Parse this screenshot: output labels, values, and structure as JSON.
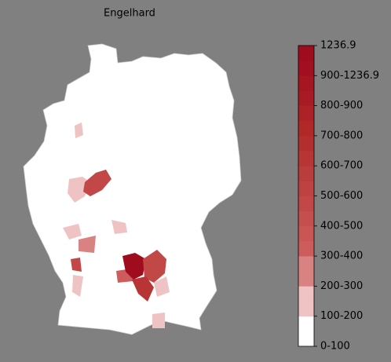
{
  "title": "Engelhard",
  "colorbar": {
    "labels": [
      "0-100",
      "100-200",
      "200-300",
      "300-400",
      "400-500",
      "500-600",
      "600-700",
      "700-800",
      "800-900",
      "900-1236.9",
      "1236.9"
    ],
    "colors": [
      "#ffffff",
      "#ffffff",
      "#efc3c3",
      "#efc3c3",
      "#d98282",
      "#d98282",
      "#cd5c5c",
      "#c95555",
      "#c54e4e",
      "#c24848",
      "#be4242",
      "#ba3c3c",
      "#b73535",
      "#b32e2e",
      "#b02828",
      "#ac2226",
      "#a81b24",
      "#a51522",
      "#a10f20",
      "#9e0c1e"
    ]
  }
}
